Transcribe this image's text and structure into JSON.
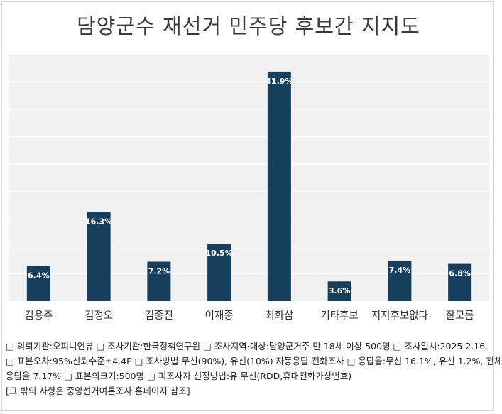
{
  "chart_data": {
    "type": "bar",
    "title": "담양군수 재선거 민주당 후보간 지지도",
    "categories": [
      "김용주",
      "김정오",
      "김종진",
      "이재종",
      "최화삼",
      "기타후보",
      "지지후보없다",
      "잘모름"
    ],
    "values": [
      6.4,
      16.3,
      7.2,
      10.5,
      41.9,
      3.6,
      7.4,
      6.8
    ],
    "value_labels": [
      "6.4%",
      "16.3%",
      "7.2%",
      "10.5%",
      "41.9%",
      "3.6%",
      "7.4%",
      "6.8%"
    ],
    "ylim": [
      0,
      45
    ],
    "grid": true,
    "xlabel": "",
    "ylabel": ""
  },
  "colors": {
    "bar": "#163f5e",
    "plot_bg": "#f1f1f1",
    "grid": "#ffffff",
    "value_text": "#ffffff"
  },
  "notes": {
    "line1": "□ 의뢰기관:오피니언뷰 □ 조사기관:한국정책연구원 □ 조사지역·대상:담양군거주 만 18세 이상 500명 □ 조사일시:2025.2.16.",
    "line2": "□ 표본오차:95%신뢰수준±4.4P □ 조사방법:무선(90%), 유선(10%) 자동응답 전화조사 □ 응답율:무선 16.1%, 유선 1.2%, 전체",
    "line3": "응답율 7.17% □ 표본의크기:500명 □ 피조사자 선정방법:유·무선(RDD,휴대전화가상번호)",
    "line4": "[그 밖의 사항은 중앙선거여론조사 홈페이지 참조]"
  }
}
